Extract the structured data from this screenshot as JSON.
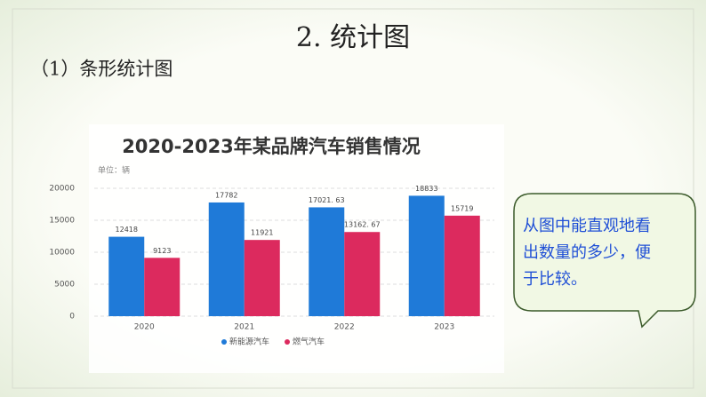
{
  "slide": {
    "title": "2. 统计图",
    "subtitle": "（1）条形统计图",
    "callout": [
      "从图中能直观地看",
      "出数量的多少，便",
      "于比较。"
    ]
  },
  "chart_data": {
    "type": "bar",
    "title": "2020-2023年某品牌汽车销售情况",
    "unit_label": "单位：辆",
    "categories": [
      "2020",
      "2021",
      "2022",
      "2023"
    ],
    "series": [
      {
        "name": "新能源汽车",
        "color": "#1f7ad8",
        "values": [
          12418,
          17782,
          17021.63,
          18833
        ],
        "value_labels": [
          "12418",
          "17782",
          "17021. 63",
          "18833"
        ]
      },
      {
        "name": "燃气汽车",
        "color": "#dc2a5e",
        "values": [
          9123,
          11921,
          13162.67,
          15719
        ],
        "value_labels": [
          "9123",
          "11921",
          "13162. 67",
          "15719"
        ]
      }
    ],
    "ylim": [
      0,
      20000
    ],
    "yticks": [
      0,
      5000,
      10000,
      15000,
      20000
    ],
    "grid": true,
    "legend": "bottom"
  }
}
